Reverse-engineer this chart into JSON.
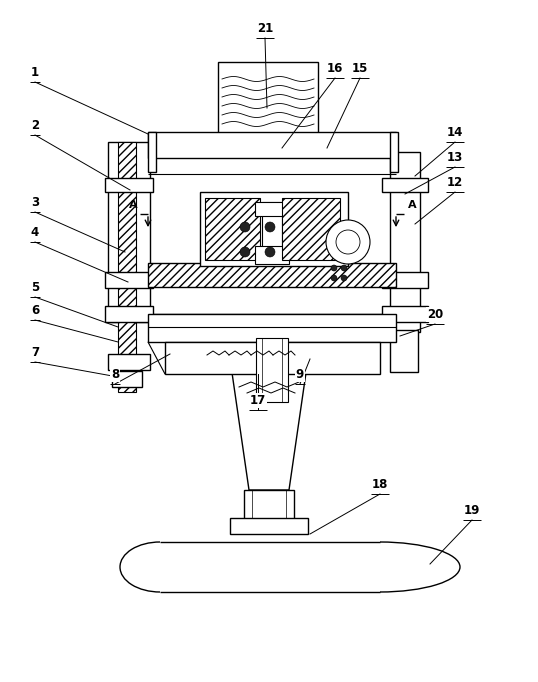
{
  "bg_color": "#ffffff",
  "lc": "#000000",
  "fig_width": 5.38,
  "fig_height": 6.82,
  "dpi": 100,
  "labels_data": [
    [
      "1",
      35,
      600,
      148,
      548
    ],
    [
      "2",
      35,
      547,
      130,
      492
    ],
    [
      "3",
      35,
      470,
      125,
      430
    ],
    [
      "4",
      35,
      440,
      128,
      400
    ],
    [
      "5",
      35,
      385,
      118,
      355
    ],
    [
      "6",
      35,
      362,
      118,
      340
    ],
    [
      "7",
      35,
      320,
      118,
      305
    ],
    [
      "8",
      115,
      298,
      170,
      328
    ],
    [
      "9",
      300,
      298,
      310,
      323
    ],
    [
      "12",
      455,
      490,
      415,
      458
    ],
    [
      "13",
      455,
      515,
      405,
      488
    ],
    [
      "14",
      455,
      540,
      415,
      506
    ],
    [
      "15",
      360,
      604,
      327,
      534
    ],
    [
      "16",
      335,
      604,
      282,
      534
    ],
    [
      "17",
      258,
      272,
      258,
      308
    ],
    [
      "18",
      380,
      188,
      310,
      148
    ],
    [
      "19",
      472,
      162,
      430,
      118
    ],
    [
      "20",
      435,
      358,
      400,
      346
    ],
    [
      "21",
      265,
      644,
      267,
      574
    ]
  ]
}
